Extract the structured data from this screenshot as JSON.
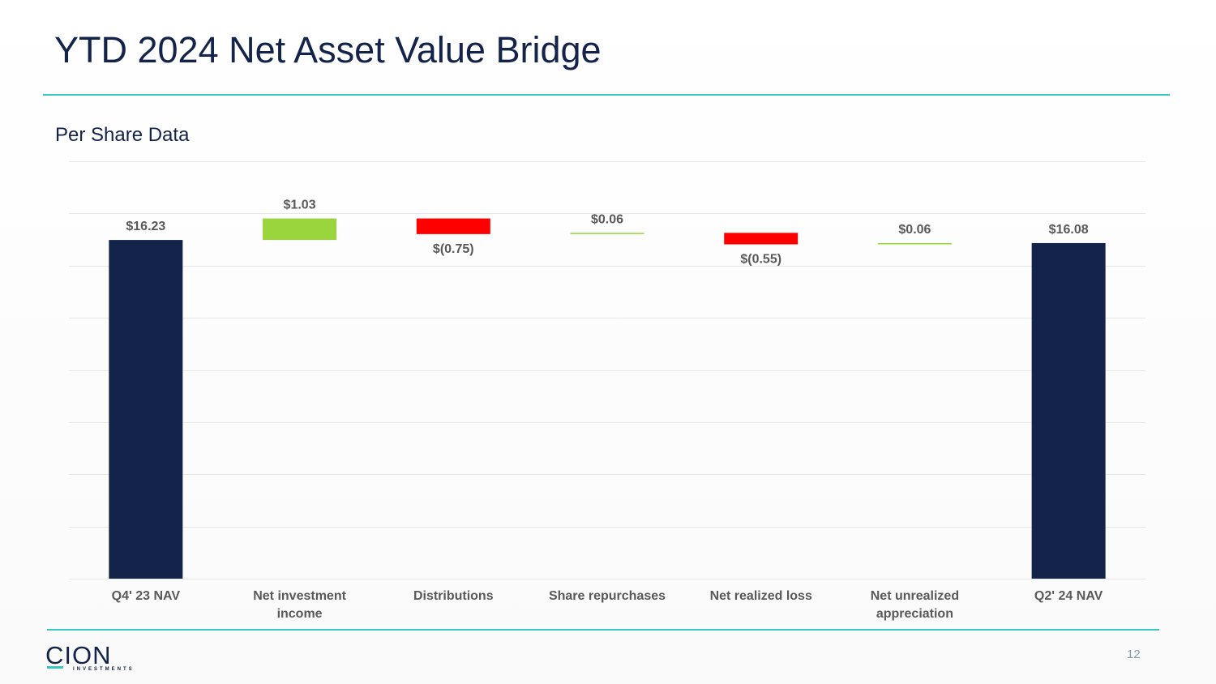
{
  "slide": {
    "title": "YTD 2024 Net Asset Value Bridge",
    "subtitle": "Per Share Data",
    "page_number": "12"
  },
  "logo": {
    "text": "CION",
    "tagline": "INVESTMENTS"
  },
  "colors": {
    "total": "#14234a",
    "increase": "#9bd53d",
    "decrease": "#ff0000",
    "accent_rule": "#3cc6c0",
    "label_text": "#595959",
    "gridline": "#e6e6e6"
  },
  "chart_data": {
    "type": "bar",
    "subtype": "waterfall",
    "title": "YTD 2024 Net Asset Value Bridge",
    "subtitle": "Per Share Data",
    "categories": [
      [
        "Q4' 23 NAV"
      ],
      [
        "Net investment",
        "income"
      ],
      [
        "Distributions"
      ],
      [
        "Share repurchases"
      ],
      [
        "Net realized loss"
      ],
      [
        "Net unrealized",
        "appreciation"
      ],
      [
        "Q2' 24 NAV"
      ]
    ],
    "values": [
      16.23,
      1.03,
      -0.75,
      0.06,
      -0.55,
      0.06,
      16.08
    ],
    "kinds": [
      "total",
      "increase",
      "decrease",
      "increase",
      "decrease",
      "increase",
      "total"
    ],
    "data_labels": [
      "$16.23",
      "$1.03",
      "$(0.75)",
      "$0.06",
      "$(0.55)",
      "$0.06",
      "$16.08"
    ],
    "ylim": [
      0,
      20
    ],
    "gridline_step": 2.5,
    "grid": true,
    "xlabel": "",
    "ylabel": ""
  }
}
